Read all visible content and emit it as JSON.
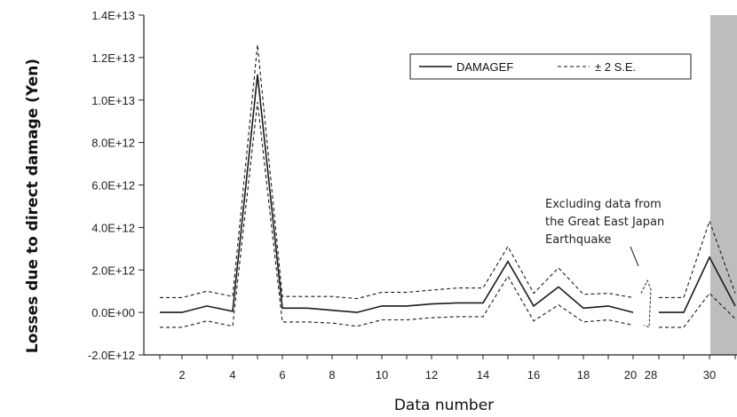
{
  "chart_data": {
    "type": "line",
    "xlabel": "Data number",
    "ylabel": "Losses due to direct damage (Yen)",
    "ylim": [
      -2000000000000.0,
      14000000000000.0
    ],
    "y_ticks": [
      "-2.0E+12",
      "0.0E+00",
      "2.0E+12",
      "4.0E+12",
      "6.0E+12",
      "8.0E+12",
      "1.0E+13",
      "1.2E+13",
      "1.4E+13"
    ],
    "x_tick_labels": [
      "2",
      "4",
      "6",
      "8",
      "10",
      "12",
      "14",
      "16",
      "18",
      "20",
      "28",
      "30"
    ],
    "categories": [
      "1",
      "2",
      "3",
      "4",
      "5",
      "6",
      "7",
      "8",
      "9",
      "10",
      "11",
      "12",
      "13",
      "14",
      "15",
      "16",
      "17",
      "18",
      "19",
      "20",
      "21",
      "27",
      "28",
      "29",
      "30",
      "31"
    ],
    "series": [
      {
        "name": "DAMAGEF",
        "style": "solid",
        "segments": [
          [
            0.0,
            0.0,
            300000000000.0,
            50000000000.0,
            11200000000000.0,
            200000000000.0,
            200000000000.0,
            100000000000.0,
            0.0,
            300000000000.0,
            300000000000.0,
            400000000000.0,
            450000000000.0,
            450000000000.0,
            2400000000000.0,
            300000000000.0,
            1200000000000.0,
            200000000000.0,
            300000000000.0,
            0.0
          ],
          [
            0.0,
            0.0,
            2600000000000.0,
            300000000000.0
          ]
        ]
      },
      {
        "name": "± 2 S.E. (upper)",
        "style": "dashed",
        "segments": [
          [
            700000000000.0,
            700000000000.0,
            1000000000000.0,
            750000000000.0,
            12600000000000.0,
            750000000000.0,
            750000000000.0,
            750000000000.0,
            650000000000.0,
            950000000000.0,
            950000000000.0,
            1050000000000.0,
            1150000000000.0,
            1150000000000.0,
            3100000000000.0,
            900000000000.0,
            2100000000000.0,
            850000000000.0,
            900000000000.0,
            700000000000.0
          ],
          [
            700000000000.0,
            700000000000.0,
            4300000000000.0,
            900000000000.0
          ]
        ]
      },
      {
        "name": "± 2 S.E. (lower)",
        "style": "dashed",
        "segments": [
          [
            -700000000000.0,
            -700000000000.0,
            -400000000000.0,
            -650000000000.0,
            9900000000000.0,
            -450000000000.0,
            -450000000000.0,
            -500000000000.0,
            -650000000000.0,
            -350000000000.0,
            -350000000000.0,
            -250000000000.0,
            -200000000000.0,
            -200000000000.0,
            1700000000000.0,
            -400000000000.0,
            350000000000.0,
            -450000000000.0,
            -350000000000.0,
            -600000000000.0
          ],
          [
            -700000000000.0,
            -700000000000.0,
            900000000000.0,
            -300000000000.0
          ]
        ]
      }
    ],
    "legend": {
      "position": "top-right",
      "entries": [
        "DAMAGEF",
        "± 2 S.E."
      ]
    },
    "annotation": [
      "Excluding data from",
      "the Great East Japan",
      "Earthquake"
    ],
    "shaded_region": {
      "from": "30.5",
      "to": "31",
      "color": "#bdbdbd"
    },
    "grid": false,
    "colors": {
      "line": "#1a1a1a",
      "shade": "#bdbdbd"
    }
  }
}
